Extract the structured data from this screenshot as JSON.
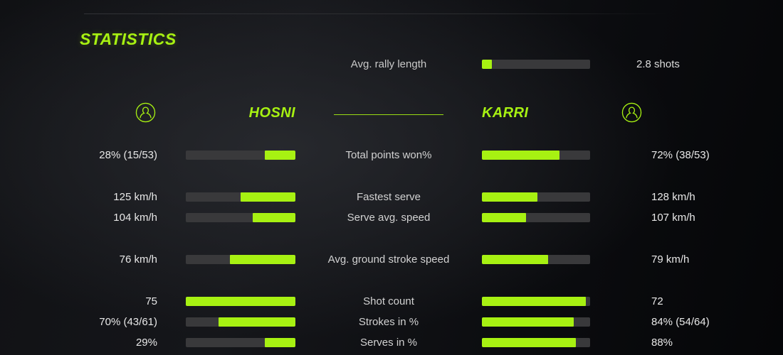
{
  "accent": "#a7f112",
  "title": "STATISTICS",
  "rally": {
    "label": "Avg. rally length",
    "value": "2.8 shots",
    "fill_pct": 9
  },
  "players": {
    "left": {
      "name": "HOSNI"
    },
    "right": {
      "name": "KARRI"
    }
  },
  "stats": [
    {
      "label": "Total points won%",
      "left_value": "28% (15/53)",
      "right_value": "72% (38/53)",
      "left_fill_pct": 28,
      "right_fill_pct": 72
    },
    {
      "label": "Fastest serve",
      "left_value": "125 km/h",
      "right_value": "128 km/h",
      "left_fill_pct": 50,
      "right_fill_pct": 51
    },
    {
      "label": "Serve avg. speed",
      "left_value": "104 km/h",
      "right_value": "107 km/h",
      "left_fill_pct": 39,
      "right_fill_pct": 41
    },
    {
      "label": "Avg. ground stroke speed",
      "left_value": "76 km/h",
      "right_value": "79 km/h",
      "left_fill_pct": 60,
      "right_fill_pct": 61
    },
    {
      "label": "Shot count",
      "left_value": "75",
      "right_value": "72",
      "left_fill_pct": 100,
      "right_fill_pct": 96
    },
    {
      "label": "Strokes in %",
      "left_value": "70% (43/61)",
      "right_value": "84% (54/64)",
      "left_fill_pct": 70,
      "right_fill_pct": 85
    },
    {
      "label": "Serves in %",
      "left_value": "29%",
      "right_value": "88%",
      "left_fill_pct": 28,
      "right_fill_pct": 87
    }
  ],
  "chart_data": {
    "type": "bar",
    "title": "STATISTICS",
    "subtitle": "Avg. rally length: 2.8 shots",
    "legend": [
      "HOSNI",
      "KARRI"
    ],
    "legend_position": "top",
    "categories": [
      "Total points won%",
      "Fastest serve",
      "Serve avg. speed",
      "Avg. ground stroke speed",
      "Shot count",
      "Strokes in %",
      "Serves in %"
    ],
    "units": [
      "%",
      "km/h",
      "km/h",
      "km/h",
      "",
      "%",
      "%"
    ],
    "series": [
      {
        "name": "HOSNI",
        "values": [
          28,
          125,
          104,
          76,
          75,
          70,
          29
        ],
        "display": [
          "28% (15/53)",
          "125 km/h",
          "104 km/h",
          "76 km/h",
          "75",
          "70% (43/61)",
          "29%"
        ]
      },
      {
        "name": "KARRI",
        "values": [
          72,
          128,
          107,
          79,
          72,
          84,
          88
        ],
        "display": [
          "72% (38/53)",
          "128 km/h",
          "107 km/h",
          "79 km/h",
          "72",
          "84% (54/64)",
          "88%"
        ]
      }
    ],
    "fractions": [
      {
        "stat": "Total points won%",
        "HOSNI": "15/53",
        "KARRI": "38/53"
      },
      {
        "stat": "Strokes in %",
        "HOSNI": "43/61",
        "KARRI": "54/64"
      }
    ],
    "avg_rally_length_shots": 2.8
  }
}
